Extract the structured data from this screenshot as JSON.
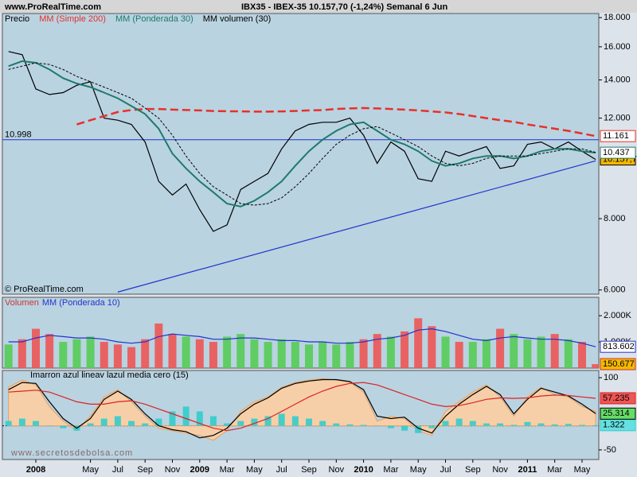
{
  "header": "www.ProRealTime.com",
  "watermark": "© ProRealTime.com",
  "site": "www.secretosdebolsa.com",
  "chart_data": [
    {
      "type": "line",
      "title": "IBX35 - IBEX-35   10.157,70 (-1,24%)   Semanal  6 Jun",
      "log_scale": true,
      "ylim": [
        5900,
        18300
      ],
      "yticks": [
        {
          "value": 18000,
          "label": "18.000"
        },
        {
          "value": 16000,
          "label": "16.000"
        },
        {
          "value": 14000,
          "label": "14.000"
        },
        {
          "value": 12000,
          "label": "12.000"
        },
        {
          "value": 8000,
          "label": "8.000"
        },
        {
          "value": 6000,
          "label": "6.000"
        }
      ],
      "hline": {
        "value": 10998,
        "label": "10.998",
        "color": "#2233cc"
      },
      "trendline": {
        "x": [
          8,
          43
        ],
        "y": [
          5950,
          10100
        ],
        "color": "#2233cc"
      },
      "series": [
        {
          "name": "Precio",
          "color": "#000000",
          "style": "line",
          "last_label": "10.157,7",
          "label_color": "#f5b800",
          "values": [
            15700,
            15500,
            13500,
            13200,
            13300,
            13700,
            13900,
            12000,
            11900,
            11700,
            10900,
            9300,
            8800,
            9200,
            8300,
            7600,
            7800,
            9000,
            9300,
            9600,
            10600,
            11400,
            11700,
            11800,
            11800,
            12000,
            11200,
            10000,
            10900,
            10500,
            9400,
            9300,
            10500,
            10300,
            10500,
            10700,
            9800,
            9900,
            10800,
            10900,
            10600,
            10900,
            10500,
            10157.7
          ]
        },
        {
          "name": "MM (Simple 200)",
          "color": "#e8302a",
          "style": "dashed-thick",
          "last_label": "11.161",
          "label_color": "#ffffff",
          "values": [
            null,
            null,
            null,
            null,
            null,
            11700,
            11900,
            12100,
            12300,
            12400,
            12450,
            12450,
            12420,
            12400,
            12380,
            12350,
            12340,
            12330,
            12320,
            12320,
            12330,
            12350,
            12380,
            12400,
            12450,
            12480,
            12500,
            12480,
            12450,
            12420,
            12380,
            12330,
            12280,
            12200,
            12100,
            12000,
            11900,
            11820,
            11700,
            11600,
            11500,
            11400,
            11280,
            11161
          ]
        },
        {
          "name": "MM (Ponderada 30)",
          "color": "#1f7a6a",
          "style": "line-thick",
          "last_label": "10.437",
          "label_color": "#ffffff",
          "values": [
            14800,
            15100,
            15000,
            14600,
            14100,
            13800,
            13600,
            13300,
            13000,
            12600,
            12200,
            11500,
            10400,
            9800,
            9300,
            8900,
            8500,
            8400,
            8600,
            8900,
            9300,
            9900,
            10500,
            11000,
            11400,
            11700,
            11800,
            11400,
            11000,
            10800,
            10500,
            10100,
            9900,
            10000,
            10200,
            10300,
            10300,
            10200,
            10300,
            10500,
            10600,
            10600,
            10500,
            10437
          ]
        },
        {
          "name": "MM volumen (30)",
          "color": "#000000",
          "style": "dashed",
          "values": [
            14600,
            14800,
            15000,
            14900,
            14600,
            14200,
            13900,
            13600,
            13300,
            13000,
            12500,
            12000,
            11200,
            10300,
            9600,
            9100,
            8800,
            8500,
            8450,
            8500,
            8700,
            9100,
            9600,
            10200,
            10800,
            11200,
            11500,
            11600,
            11300,
            11000,
            10700,
            10300,
            10000,
            9900,
            10000,
            10200,
            10300,
            10300,
            10300,
            10400,
            10500,
            10600,
            10600,
            10450
          ]
        }
      ]
    },
    {
      "type": "bar",
      "log_scale": false,
      "ylim": [
        0,
        2700
      ],
      "yticks": [
        {
          "value": 2000,
          "label": "2.000K"
        },
        {
          "value": 1000,
          "label": "1.000K"
        }
      ],
      "series": [
        {
          "name": "Volumen",
          "color": "#cc3333",
          "style": "bars",
          "last_label": "150.677",
          "label_color": "#f5b800",
          "colors": [
            "#55cc55",
            "#ee5555",
            "#ee5555",
            "#ee5555",
            "#55cc55",
            "#55cc55",
            "#55cc55",
            "#ee5555",
            "#ee5555",
            "#ee5555",
            "#ee5555",
            "#ee5555",
            "#ee5555",
            "#55cc55",
            "#ee5555",
            "#ee5555",
            "#55cc55",
            "#55cc55",
            "#55cc55",
            "#55cc55",
            "#55cc55",
            "#55cc55",
            "#55cc55",
            "#55cc55",
            "#55cc55",
            "#55cc55",
            "#ee5555",
            "#ee5555",
            "#55cc55",
            "#ee5555",
            "#ee5555",
            "#ee5555",
            "#55cc55",
            "#ee5555",
            "#55cc55",
            "#55cc55",
            "#ee5555",
            "#55cc55",
            "#55cc55",
            "#55cc55",
            "#ee5555",
            "#55cc55",
            "#ee5555",
            "#ee5555"
          ],
          "values": [
            900,
            1100,
            1500,
            1300,
            1000,
            1100,
            1200,
            1000,
            900,
            800,
            1100,
            1700,
            1300,
            1200,
            1100,
            1000,
            1200,
            1300,
            1100,
            1000,
            1100,
            1000,
            900,
            1000,
            900,
            1000,
            1100,
            1300,
            1200,
            1400,
            1900,
            1600,
            1200,
            1000,
            1000,
            1100,
            1500,
            1300,
            1100,
            1200,
            1300,
            1100,
            1000,
            150.677
          ]
        },
        {
          "name": "MM (Ponderada 10)",
          "color": "#2233cc",
          "style": "line",
          "last_label": "813.602",
          "label_color": "#ffffff",
          "values": [
            1000,
            1000,
            1150,
            1250,
            1200,
            1150,
            1150,
            1100,
            1000,
            950,
            1000,
            1200,
            1300,
            1250,
            1200,
            1100,
            1100,
            1150,
            1150,
            1100,
            1050,
            1050,
            1000,
            1000,
            950,
            950,
            1000,
            1100,
            1150,
            1250,
            1450,
            1500,
            1400,
            1250,
            1100,
            1050,
            1150,
            1200,
            1150,
            1100,
            1100,
            1050,
            950,
            813.602
          ]
        }
      ]
    },
    {
      "type": "line",
      "legend": "Imarron azul lineav lazul media cero (15)",
      "log_scale": false,
      "ylim": [
        -70,
        115
      ],
      "yticks": [
        100,
        -50
      ],
      "categories": [
        null,
        null,
        "2008",
        null,
        null,
        null,
        "May",
        null,
        "Jul",
        null,
        "Sep",
        null,
        "Nov",
        null,
        "2009",
        null,
        "Mar",
        null,
        "May",
        null,
        "Jul",
        null,
        "Sep",
        null,
        "Nov",
        null,
        "2010",
        null,
        "Mar",
        null,
        "May",
        null,
        "Jul",
        null,
        "Sep",
        null,
        "Nov",
        null,
        "2011",
        null,
        "Mar",
        null,
        "May",
        null
      ],
      "series": [
        {
          "color": "#e8a060",
          "style": "area",
          "values": [
            80,
            95,
            85,
            40,
            10,
            -10,
            20,
            60,
            75,
            50,
            20,
            -5,
            -10,
            -15,
            -20,
            -30,
            -10,
            30,
            50,
            60,
            80,
            90,
            95,
            98,
            95,
            90,
            70,
            10,
            20,
            15,
            -10,
            -20,
            30,
            50,
            70,
            85,
            60,
            20,
            60,
            80,
            65,
            60,
            40,
            30
          ]
        },
        {
          "color": "#33cccc",
          "style": "bars",
          "last_label": "1.322",
          "label_color": "#66e0e0",
          "values": [
            10,
            15,
            10,
            0,
            -5,
            -10,
            5,
            15,
            20,
            10,
            5,
            15,
            30,
            40,
            30,
            20,
            5,
            10,
            15,
            20,
            25,
            20,
            15,
            10,
            5,
            3,
            2,
            0,
            -5,
            -10,
            -15,
            -5,
            10,
            15,
            10,
            5,
            5,
            2,
            8,
            5,
            3,
            4,
            2,
            1.322
          ]
        },
        {
          "color": "#000000",
          "style": "line",
          "last_label": "25.314",
          "label_color": "#66dd66",
          "values": [
            75,
            90,
            88,
            50,
            15,
            -5,
            15,
            55,
            72,
            55,
            25,
            0,
            -8,
            -12,
            -25,
            -20,
            -5,
            25,
            45,
            58,
            78,
            88,
            93,
            96,
            96,
            92,
            75,
            20,
            15,
            18,
            -5,
            -15,
            20,
            45,
            65,
            82,
            65,
            25,
            55,
            78,
            70,
            62,
            45,
            25.314
          ]
        },
        {
          "color": "#dd2222",
          "style": "line",
          "last_label": "57.235",
          "label_color": "#ee5555",
          "values": [
            70,
            72,
            74,
            70,
            60,
            50,
            45,
            45,
            50,
            52,
            45,
            35,
            25,
            15,
            5,
            -5,
            -10,
            -5,
            5,
            15,
            30,
            45,
            60,
            72,
            82,
            88,
            90,
            85,
            75,
            65,
            55,
            45,
            40,
            42,
            48,
            55,
            58,
            57,
            58,
            62,
            64,
            63,
            60,
            57.235
          ]
        }
      ]
    }
  ]
}
